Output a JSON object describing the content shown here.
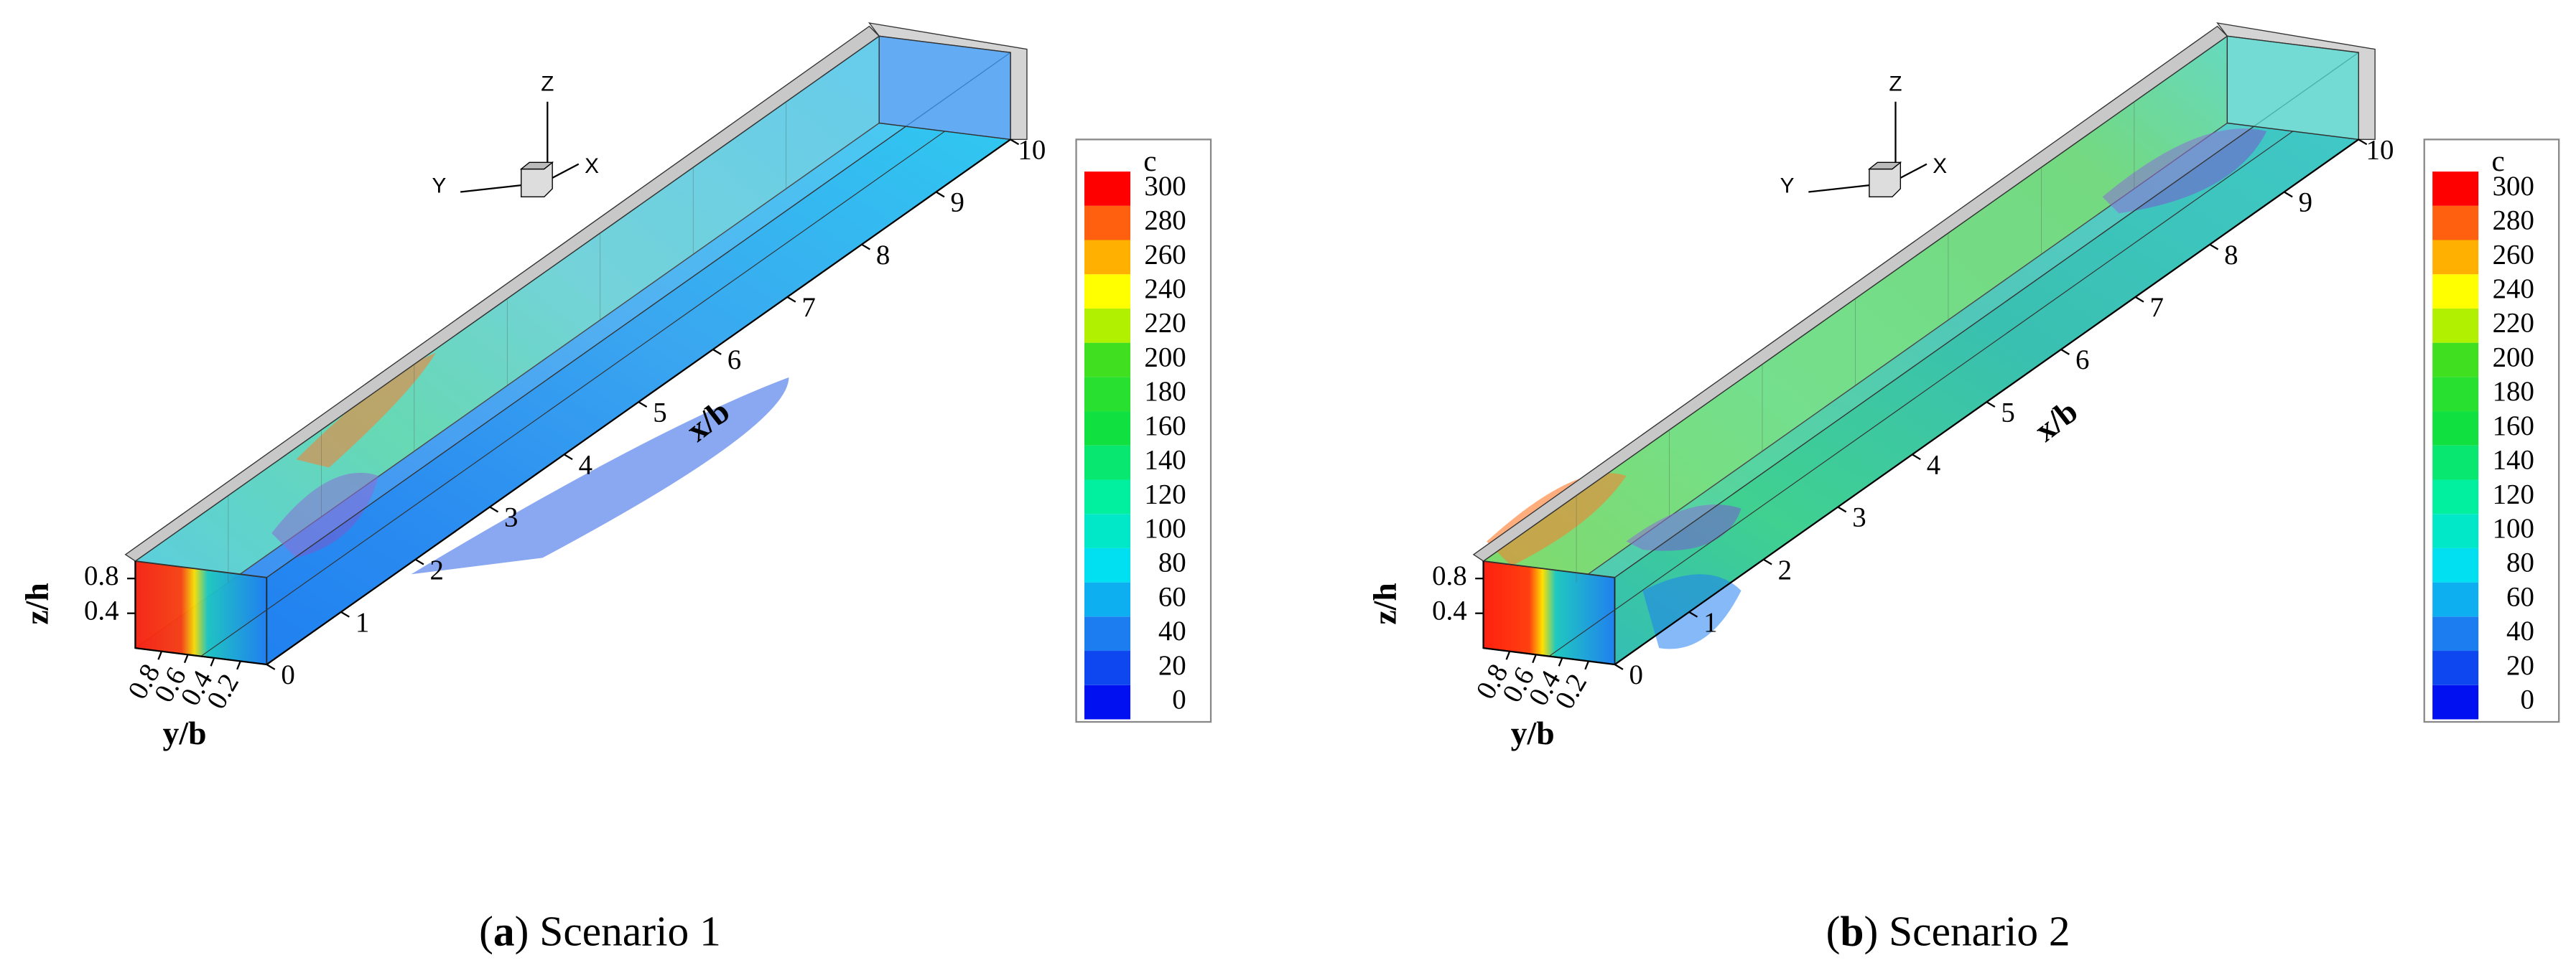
{
  "panels": [
    {
      "caption": [
        "(",
        "a",
        ") Scenario 1"
      ],
      "colorbar": {
        "title": "c",
        "ticks": [
          0,
          20,
          40,
          60,
          80,
          100,
          120,
          140,
          160,
          180,
          200,
          220,
          240,
          260,
          280,
          300
        ]
      },
      "x_axis": {
        "label": "x/b",
        "ticks": [
          0,
          1,
          2,
          3,
          4,
          5,
          6,
          7,
          8,
          9,
          10
        ]
      },
      "y_axis": {
        "label": "y/b",
        "ticks": [
          0.2,
          0.4,
          0.6,
          0.8
        ]
      },
      "z_axis": {
        "label": "z/h",
        "ticks": [
          0.4,
          0.8
        ]
      },
      "triad": [
        "X",
        "Y",
        "Z"
      ]
    },
    {
      "caption": [
        "(",
        "b",
        ") Scenario 2"
      ],
      "colorbar": {
        "title": "c",
        "ticks": [
          0,
          20,
          40,
          60,
          80,
          100,
          120,
          140,
          160,
          180,
          200,
          220,
          240,
          260,
          280,
          300
        ]
      },
      "x_axis": {
        "label": "x/b",
        "ticks": [
          0,
          1,
          2,
          3,
          4,
          5,
          6,
          7,
          8,
          9,
          10
        ]
      },
      "y_axis": {
        "label": "y/b",
        "ticks": [
          0.2,
          0.4,
          0.6,
          0.8
        ]
      },
      "z_axis": {
        "label": "z/h",
        "ticks": [
          0.4,
          0.8
        ]
      },
      "triad": [
        "X",
        "Y",
        "Z"
      ]
    }
  ]
}
